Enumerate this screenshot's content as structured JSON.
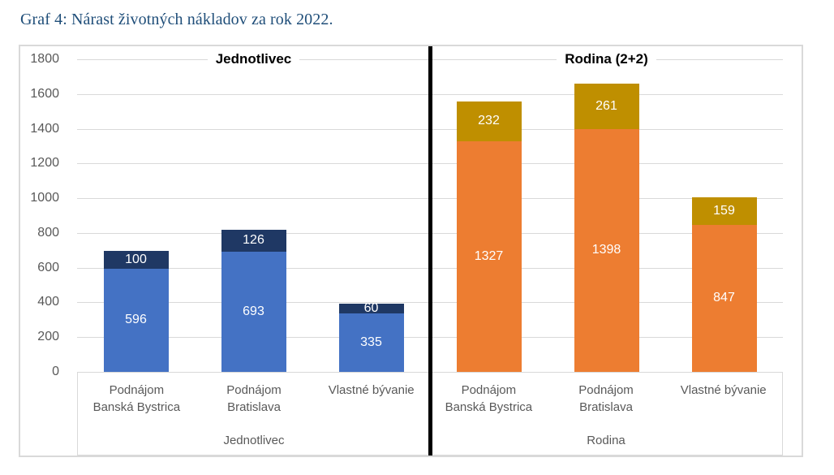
{
  "caption": "Graf 4: Nárast životných nákladov za rok 2022.",
  "colors": {
    "caption_text": "#1F4E79",
    "gridline": "#D9D9D9",
    "frame_border": "#D9D9D9",
    "axis_text": "#595959",
    "value_label_text": "#ffffff",
    "panel_divider": "#000000"
  },
  "chart_data": {
    "type": "bar",
    "stacked": true,
    "grid": true,
    "legend": false,
    "ylim": [
      0,
      1800
    ],
    "ytick_step": 200,
    "panels": [
      {
        "title": "Jednotlivec",
        "axis_group_label": "Jednotlivec",
        "categories": [
          [
            "Podnájom",
            "Banská Bystrica"
          ],
          [
            "Podnájom",
            "Bratislava"
          ],
          [
            "Vlastné bývanie"
          ]
        ],
        "series": [
          {
            "color": "#4472C4",
            "values": [
              596,
              693,
              335
            ]
          },
          {
            "color": "#1F3864",
            "values": [
              100,
              126,
              60
            ]
          }
        ],
        "totals": [
          696,
          819,
          395
        ]
      },
      {
        "title": "Rodina (2+2)",
        "axis_group_label": "Rodina",
        "categories": [
          [
            "Podnájom",
            "Banská Bystrica"
          ],
          [
            "Podnájom",
            "Bratislava"
          ],
          [
            "Vlastné bývanie"
          ]
        ],
        "series": [
          {
            "color": "#ED7D31",
            "values": [
              1327,
              1398,
              847
            ]
          },
          {
            "color": "#BF8F00",
            "values": [
              232,
              261,
              159
            ]
          }
        ],
        "totals": [
          1559,
          1659,
          1006
        ]
      }
    ]
  }
}
